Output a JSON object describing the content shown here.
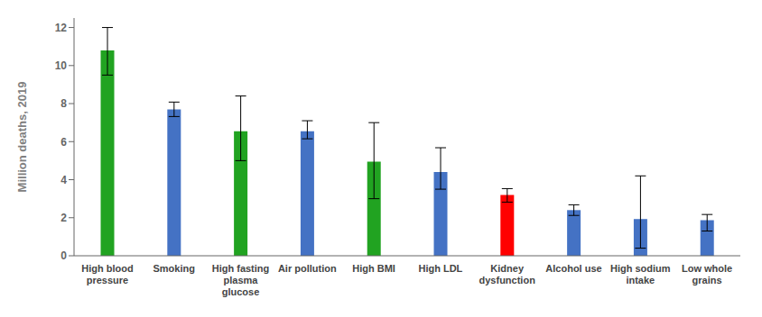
{
  "chart_data": {
    "type": "bar",
    "categories": [
      "High blood\npressure",
      "Smoking",
      "High fasting\nplasma\nglucose",
      "Air pollution",
      "High BMI",
      "High LDL",
      "Kidney\ndysfunction",
      "Alcohol use",
      "High sodium\nintake",
      "Low whole\ngrains"
    ],
    "values": [
      10.8,
      7.7,
      6.55,
      6.55,
      4.95,
      4.4,
      3.2,
      2.4,
      1.93,
      1.87
    ],
    "err_low": [
      1.3,
      0.38,
      1.55,
      0.4,
      1.95,
      0.9,
      0.38,
      0.28,
      1.53,
      0.57
    ],
    "err_high": [
      1.2,
      0.38,
      1.85,
      0.55,
      2.05,
      1.28,
      0.33,
      0.28,
      2.27,
      0.3
    ],
    "colors": [
      "#21a321",
      "#4472c4",
      "#21a321",
      "#4472c4",
      "#21a321",
      "#4472c4",
      "#ff0000",
      "#4472c4",
      "#4472c4",
      "#4472c4"
    ],
    "ylabel": "Million deaths, 2019",
    "ylim": [
      0,
      12.5
    ],
    "yticks": [
      0,
      2,
      4,
      6,
      8,
      10,
      12
    ],
    "grid": false
  }
}
